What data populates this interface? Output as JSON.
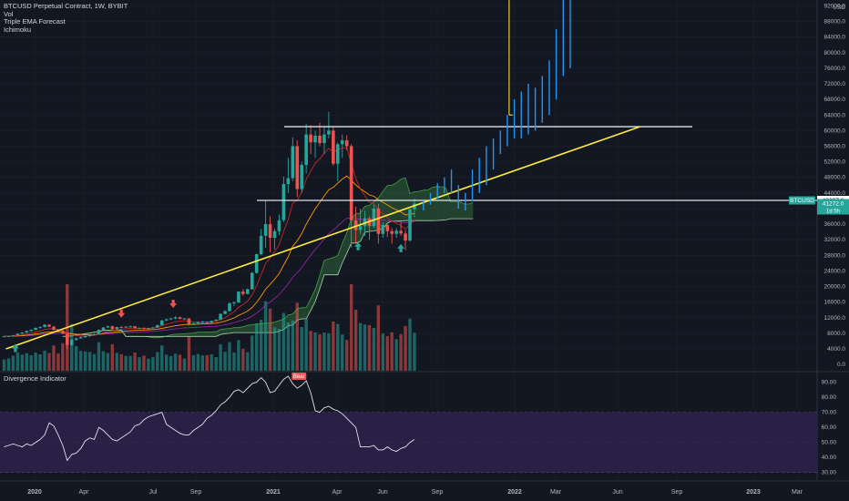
{
  "legend": {
    "title": "BTCUSD Perpetual Contract, 1W, BYBIT",
    "indicators": [
      "Vol",
      "Triple EMA Forecast",
      "Ichimoku"
    ]
  },
  "currency": "USD",
  "divergence_label": "Divergence Indicator",
  "bear_label": "Bear",
  "price_badges": {
    "upper": "42097.0",
    "symbol": "BTCUSD",
    "last": "41272.0",
    "countdown": "1d 5h"
  },
  "colors": {
    "background": "#131722",
    "up": "#26a69a",
    "down": "#ef5350",
    "trendline": "#ffeb3b",
    "forecast": "#2196f3",
    "cloud": "#4caf50",
    "rsi_band": "#2a1f45"
  },
  "chart_data": [
    {
      "type": "candlestick",
      "title": "BTCUSD Perpetual Contract, 1W, BYBIT",
      "x_ticks": [
        "2020",
        "Apr",
        "Jul",
        "Sep",
        "2021",
        "Apr",
        "Jun",
        "Sep",
        "2022",
        "Mar",
        "Jun",
        "Sep",
        "2023",
        "Mar"
      ],
      "y_ticks": [
        0,
        4000,
        8000,
        12000,
        16000,
        20000,
        24000,
        28000,
        32000,
        36000,
        40000,
        44000,
        48000,
        52000,
        56000,
        60000,
        64000,
        68000,
        72000,
        76000,
        80000,
        84000,
        88000,
        92000
      ],
      "ylim": [
        -1600,
        93500
      ],
      "horizontal_levels": [
        61000,
        42097
      ],
      "trendline": {
        "from": [
          0.4,
          4000
        ],
        "to": [
          141,
          61000
        ]
      },
      "candles": [
        [
          7200,
          7300,
          7100,
          7250
        ],
        [
          7250,
          7400,
          7150,
          7300
        ],
        [
          7300,
          7600,
          7200,
          7500
        ],
        [
          7500,
          8000,
          7400,
          7900
        ],
        [
          7900,
          8300,
          7800,
          8200
        ],
        [
          8200,
          8700,
          8100,
          8600
        ],
        [
          8600,
          9000,
          8500,
          8900
        ],
        [
          8900,
          9500,
          8800,
          9400
        ],
        [
          9400,
          9800,
          9200,
          9600
        ],
        [
          9600,
          10400,
          9500,
          10200
        ],
        [
          10200,
          10300,
          9600,
          9700
        ],
        [
          9700,
          9900,
          8800,
          8900
        ],
        [
          8900,
          9100,
          8500,
          8600
        ],
        [
          8600,
          8900,
          7800,
          7900
        ],
        [
          7900,
          8000,
          4000,
          5000
        ],
        [
          5000,
          6500,
          4800,
          6300
        ],
        [
          6300,
          6900,
          6100,
          6700
        ],
        [
          6700,
          7200,
          6600,
          7000
        ],
        [
          7000,
          7400,
          6800,
          7300
        ],
        [
          7300,
          7700,
          7100,
          7600
        ],
        [
          7600,
          8000,
          7500,
          7800
        ],
        [
          7800,
          9000,
          7700,
          8900
        ],
        [
          8900,
          9600,
          8800,
          9500
        ],
        [
          9500,
          10000,
          9300,
          9800
        ],
        [
          9800,
          10000,
          8800,
          9100
        ],
        [
          9100,
          9700,
          9000,
          9600
        ],
        [
          9600,
          9900,
          9300,
          9500
        ],
        [
          9500,
          9900,
          9400,
          9700
        ],
        [
          9700,
          10000,
          9500,
          9800
        ],
        [
          9800,
          9900,
          9200,
          9300
        ],
        [
          9300,
          9500,
          9100,
          9400
        ],
        [
          9400,
          9500,
          9000,
          9200
        ],
        [
          9200,
          9400,
          9100,
          9300
        ],
        [
          9300,
          9600,
          9200,
          9500
        ],
        [
          9500,
          10200,
          9400,
          10100
        ],
        [
          10100,
          11400,
          10000,
          11300
        ],
        [
          11300,
          11800,
          11100,
          11600
        ],
        [
          11600,
          12000,
          11400,
          11800
        ],
        [
          11800,
          12400,
          11600,
          12100
        ],
        [
          12100,
          12300,
          11600,
          11700
        ],
        [
          11700,
          11900,
          11500,
          11800
        ],
        [
          11800,
          11900,
          10000,
          10300
        ],
        [
          10300,
          10700,
          10100,
          10600
        ],
        [
          10600,
          11100,
          10400,
          10800
        ],
        [
          10800,
          11200,
          10600,
          10900
        ],
        [
          10900,
          11100,
          10500,
          10700
        ],
        [
          10700,
          11300,
          10600,
          11200
        ],
        [
          11200,
          11600,
          11100,
          11500
        ],
        [
          11500,
          13100,
          11400,
          13000
        ],
        [
          13000,
          13900,
          12800,
          13700
        ],
        [
          13700,
          15900,
          13600,
          15700
        ],
        [
          15700,
          16200,
          15000,
          15900
        ],
        [
          15900,
          18800,
          15800,
          18700
        ],
        [
          18700,
          19400,
          17600,
          18100
        ],
        [
          18100,
          19500,
          18000,
          19300
        ],
        [
          19300,
          23700,
          19200,
          23500
        ],
        [
          23500,
          28400,
          23300,
          28300
        ],
        [
          28300,
          34800,
          28000,
          33000
        ],
        [
          33000,
          42000,
          30000,
          36000
        ],
        [
          36000,
          38000,
          28800,
          32500
        ],
        [
          32500,
          34800,
          29500,
          34200
        ],
        [
          34200,
          38500,
          33200,
          37000
        ],
        [
          37000,
          48200,
          36500,
          46300
        ],
        [
          46300,
          53000,
          44000,
          47800
        ],
        [
          47800,
          58300,
          47000,
          56000
        ],
        [
          56000,
          57500,
          43000,
          45000
        ],
        [
          45000,
          52000,
          44000,
          51200
        ],
        [
          51200,
          61700,
          49000,
          59000
        ],
        [
          59000,
          61400,
          54000,
          57000
        ],
        [
          57000,
          60000,
          53000,
          58700
        ],
        [
          58700,
          62000,
          56000,
          56800
        ],
        [
          56800,
          61000,
          54000,
          59000
        ],
        [
          59000,
          64800,
          58000,
          60000
        ],
        [
          60000,
          61000,
          51000,
          51500
        ],
        [
          51500,
          57000,
          47000,
          56500
        ],
        [
          56500,
          59000,
          53000,
          57500
        ],
        [
          57500,
          58800,
          55000,
          56000
        ],
        [
          56000,
          56500,
          30000,
          37000
        ],
        [
          37000,
          40500,
          31000,
          34500
        ],
        [
          34500,
          40000,
          33500,
          35500
        ],
        [
          35500,
          39500,
          33000,
          37500
        ],
        [
          37500,
          38000,
          32000,
          35500
        ],
        [
          35500,
          41000,
          35000,
          40000
        ],
        [
          40000,
          41200,
          31000,
          33500
        ],
        [
          33500,
          36500,
          32500,
          35800
        ],
        [
          35800,
          35900,
          32700,
          34200
        ],
        [
          34200,
          35000,
          31000,
          33500
        ],
        [
          33500,
          35000,
          32500,
          34300
        ],
        [
          34300,
          36600,
          33000,
          33600
        ],
        [
          33600,
          34500,
          29300,
          31800
        ],
        [
          31800,
          40000,
          31500,
          39800
        ],
        [
          39800,
          42600,
          37800,
          41272
        ]
      ],
      "forecast_bars": [
        [
          39500,
          42000
        ],
        [
          41000,
          44000
        ],
        [
          42500,
          46500
        ],
        [
          44000,
          48000
        ],
        [
          44000,
          50000
        ],
        [
          40000,
          46000
        ],
        [
          39500,
          44000
        ],
        [
          42000,
          50000
        ],
        [
          44000,
          53000
        ],
        [
          46000,
          56000
        ],
        [
          50000,
          58000
        ],
        [
          54000,
          60000
        ],
        [
          56000,
          64000
        ],
        [
          58000,
          68000
        ],
        [
          58000,
          70000
        ],
        [
          59000,
          72000
        ],
        [
          60000,
          71000
        ],
        [
          62000,
          74000
        ],
        [
          64000,
          78000
        ],
        [
          68000,
          86000
        ],
        [
          74000,
          94000
        ],
        [
          76000,
          94000
        ]
      ],
      "forecast_line": [
        [
          112,
          64000
        ],
        [
          112,
          95000
        ]
      ],
      "trade_arrows": [
        {
          "x": 2.5,
          "direction": "up"
        },
        {
          "x": 26,
          "direction": "down"
        },
        {
          "x": 37.5,
          "direction": "down"
        },
        {
          "x": 78.5,
          "direction": "up"
        },
        {
          "x": 88,
          "direction": "up"
        }
      ]
    },
    {
      "type": "line",
      "title": "Divergence Indicator",
      "y_ticks": [
        30,
        40,
        50,
        60,
        70,
        80,
        90
      ],
      "ylim": [
        25,
        97
      ],
      "band": [
        30,
        70
      ],
      "midline": 50,
      "annotations": [
        {
          "label": "Bear",
          "x": 65
        }
      ],
      "values": [
        47,
        48,
        49,
        48,
        47,
        49,
        48,
        50,
        52,
        55,
        63,
        61,
        55,
        48,
        38,
        42,
        43,
        46,
        51,
        53,
        52,
        60,
        58,
        55,
        52,
        51,
        53,
        55,
        57,
        61,
        62,
        65,
        67,
        68,
        69,
        70,
        62,
        60,
        58,
        56,
        55,
        55,
        58,
        60,
        62,
        66,
        68,
        71,
        75,
        77,
        80,
        84,
        85,
        83,
        86,
        89,
        90,
        93,
        90,
        83,
        84,
        88,
        92,
        94,
        89,
        86,
        88,
        91,
        83,
        71,
        70,
        73,
        74,
        72,
        71,
        69,
        66,
        63,
        60,
        47,
        47,
        47,
        48,
        45,
        45,
        47,
        45,
        44,
        46,
        47,
        50,
        52
      ]
    }
  ]
}
